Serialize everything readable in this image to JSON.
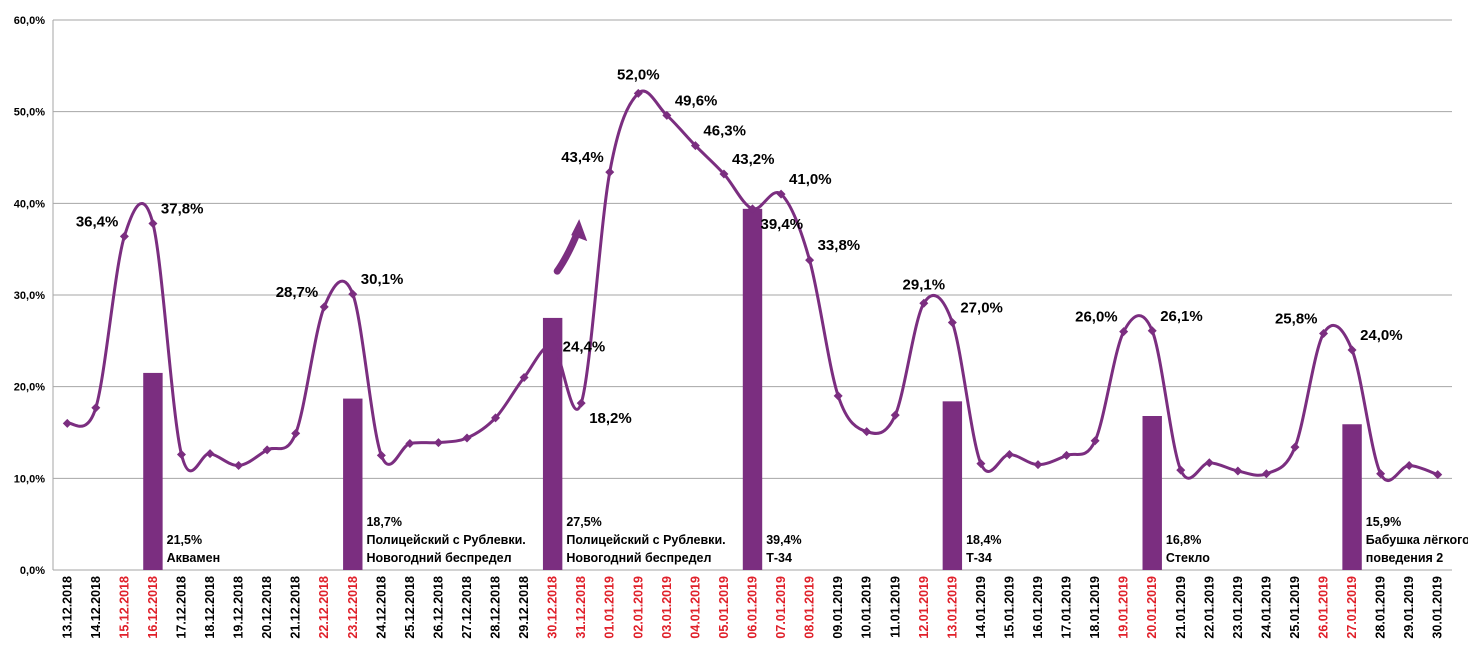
{
  "chart_data": {
    "type": "bar+line",
    "ylim": [
      0,
      60
    ],
    "yticks": [
      "0,0%",
      "10,0%",
      "20,0%",
      "30,0%",
      "40,0%",
      "50,0%",
      "60,0%"
    ],
    "grid": true,
    "categories": [
      "13.12.2018",
      "14.12.2018",
      "15.12.2018",
      "16.12.2018",
      "17.12.2018",
      "18.12.2018",
      "19.12.2018",
      "20.12.2018",
      "21.12.2018",
      "22.12.2018",
      "23.12.2018",
      "24.12.2018",
      "25.12.2018",
      "26.12.2018",
      "27.12.2018",
      "28.12.2018",
      "29.12.2018",
      "30.12.2018",
      "31.12.2018",
      "01.01.2019",
      "02.01.2019",
      "03.01.2019",
      "04.01.2019",
      "05.01.2019",
      "06.01.2019",
      "07.01.2019",
      "08.01.2019",
      "09.01.2019",
      "10.01.2019",
      "11.01.2019",
      "12.01.2019",
      "13.01.2019",
      "14.01.2019",
      "15.01.2019",
      "16.01.2019",
      "17.01.2019",
      "18.01.2019",
      "19.01.2019",
      "20.01.2019",
      "21.01.2019",
      "22.01.2019",
      "23.01.2019",
      "24.01.2019",
      "25.01.2019",
      "26.01.2019",
      "27.01.2019",
      "28.01.2019",
      "29.01.2019",
      "30.01.2019"
    ],
    "highlighted_dates": [
      "15.12.2018",
      "16.12.2018",
      "22.12.2018",
      "23.12.2018",
      "30.12.2018",
      "31.12.2018",
      "01.01.2019",
      "02.01.2019",
      "03.01.2019",
      "04.01.2019",
      "05.01.2019",
      "06.01.2019",
      "07.01.2019",
      "08.01.2019",
      "12.01.2019",
      "13.01.2019",
      "19.01.2019",
      "20.01.2019",
      "26.01.2019",
      "27.01.2019"
    ],
    "colors": {
      "series": "#7b2e80",
      "highlight": "#e0202a",
      "tick": "#000000",
      "grid": "#a6a6a6"
    },
    "line": {
      "values": [
        16.0,
        17.7,
        36.4,
        37.8,
        12.6,
        12.7,
        11.4,
        13.1,
        14.9,
        28.7,
        30.1,
        12.5,
        13.8,
        13.9,
        14.4,
        16.6,
        21.0,
        24.4,
        18.2,
        43.4,
        52.0,
        49.6,
        46.3,
        43.2,
        39.4,
        41.0,
        33.8,
        19.0,
        15.1,
        16.9,
        29.1,
        27.0,
        11.6,
        12.6,
        11.5,
        12.5,
        14.1,
        26.0,
        26.1,
        10.9,
        11.7,
        10.8,
        10.5,
        13.4,
        25.8,
        24.0,
        10.5,
        11.4,
        10.4
      ]
    },
    "line_labels": [
      {
        "index": 2,
        "text": "36,4%",
        "anchor": "end",
        "pos": "above-left"
      },
      {
        "index": 3,
        "text": "37,8%",
        "anchor": "start",
        "pos": "above-right"
      },
      {
        "index": 9,
        "text": "28,7%",
        "anchor": "end",
        "pos": "above-left"
      },
      {
        "index": 10,
        "text": "30,1%",
        "anchor": "start",
        "pos": "above-right"
      },
      {
        "index": 17,
        "text": "24,4%",
        "anchor": "start",
        "pos": "right"
      },
      {
        "index": 18,
        "text": "18,2%",
        "anchor": "start",
        "pos": "below-right"
      },
      {
        "index": 19,
        "text": "43,4%",
        "anchor": "end",
        "pos": "above-left"
      },
      {
        "index": 20,
        "text": "52,0%",
        "anchor": "middle",
        "pos": "above"
      },
      {
        "index": 21,
        "text": "49,6%",
        "anchor": "start",
        "pos": "above-right"
      },
      {
        "index": 22,
        "text": "46,3%",
        "anchor": "start",
        "pos": "above-right"
      },
      {
        "index": 23,
        "text": "43,2%",
        "anchor": "start",
        "pos": "above-right"
      },
      {
        "index": 24,
        "text": "39,4%",
        "anchor": "start",
        "pos": "below-right"
      },
      {
        "index": 25,
        "text": "41,0%",
        "anchor": "start",
        "pos": "above-right"
      },
      {
        "index": 26,
        "text": "33,8%",
        "anchor": "start",
        "pos": "above-right"
      },
      {
        "index": 30,
        "text": "29,1%",
        "anchor": "middle",
        "pos": "above"
      },
      {
        "index": 31,
        "text": "27,0%",
        "anchor": "start",
        "pos": "above-right"
      },
      {
        "index": 37,
        "text": "26,0%",
        "anchor": "end",
        "pos": "above-left"
      },
      {
        "index": 38,
        "text": "26,1%",
        "anchor": "start",
        "pos": "above-right"
      },
      {
        "index": 44,
        "text": "25,8%",
        "anchor": "end",
        "pos": "above-left"
      },
      {
        "index": 45,
        "text": "24,0%",
        "anchor": "start",
        "pos": "above-right"
      }
    ],
    "bars": [
      {
        "index": 3,
        "value": 21.5,
        "label": "21,5%",
        "title_lines": [
          "Аквамен"
        ]
      },
      {
        "index": 10,
        "value": 18.7,
        "label": "18,7%",
        "title_lines": [
          "Полицейский с Рублевки.",
          "Новогодний беспредел"
        ]
      },
      {
        "index": 17,
        "value": 27.5,
        "label": "27,5%",
        "title_lines": [
          "Полицейский с Рублевки.",
          "Новогодний беспредел"
        ]
      },
      {
        "index": 24,
        "value": 39.4,
        "label": "39,4%",
        "title_lines": [
          "Т-34"
        ]
      },
      {
        "index": 31,
        "value": 18.4,
        "label": "18,4%",
        "title_lines": [
          "Т-34"
        ]
      },
      {
        "index": 38,
        "value": 16.8,
        "label": "16,8%",
        "title_lines": [
          "Стекло"
        ]
      },
      {
        "index": 45,
        "value": 15.9,
        "label": "15,9%",
        "title_lines": [
          "Бабушка лёгкого",
          "поведения 2"
        ]
      }
    ],
    "annotation": {
      "type": "curved-arrow",
      "near_index": 18
    }
  }
}
